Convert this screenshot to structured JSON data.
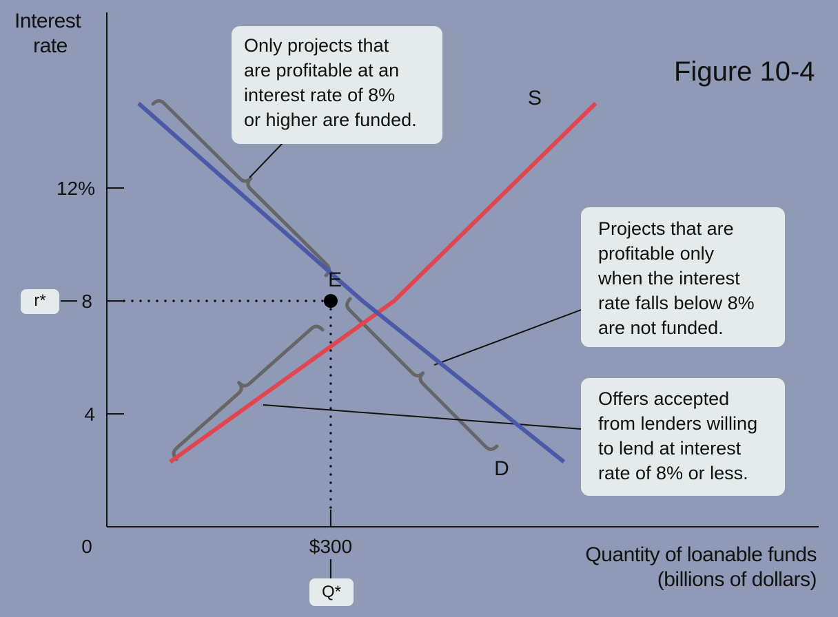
{
  "chart_data": {
    "type": "line",
    "title": "Figure 10-4",
    "ylabel": "Interest\nrate",
    "xlabel_line1": "Quantity of loanable funds",
    "xlabel_line2": "(billions of dollars)",
    "origin_label": "0",
    "y_ticks": [
      {
        "value": 12,
        "label": "12%"
      },
      {
        "value": 8,
        "label": "8"
      },
      {
        "value": 4,
        "label": "4"
      }
    ],
    "x_ticks": [
      {
        "value": 300,
        "label": "$300"
      }
    ],
    "series": [
      {
        "name": "S",
        "color": "#e2454e",
        "points": [
          [
            0,
            2.3
          ],
          [
            300,
            8
          ],
          [
            570,
            15
          ]
        ]
      },
      {
        "name": "D",
        "color": "#4a5aa8",
        "points": [
          [
            0,
            15
          ],
          [
            300,
            8
          ],
          [
            570,
            2.3
          ]
        ]
      }
    ],
    "equilibrium": {
      "label": "E",
      "x": 300,
      "y": 8
    },
    "r_star_label": "r*",
    "q_star_label": "Q*"
  },
  "callouts": {
    "top": "Only projects that\nare profitable at an\ninterest rate of 8%\nor higher are funded.",
    "right_upper": "Projects that are\nprofitable only\nwhen the interest\nrate falls below 8%\nare not funded.",
    "right_lower": "Offers accepted\nfrom lenders willing\nto lend at interest\nrate of 8% or less."
  }
}
